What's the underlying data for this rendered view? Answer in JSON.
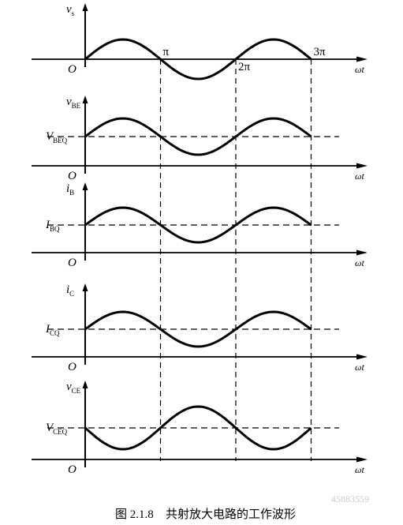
{
  "panels": [
    {
      "label": {
        "symbol": "v",
        "subscript": "s"
      },
      "origin": "O",
      "axis_label": "ωt",
      "ticks": [
        "π",
        "2π",
        "3π"
      ]
    },
    {
      "label": {
        "symbol": "v",
        "subscript": "BE"
      },
      "dc_label": {
        "symbol": "V",
        "subscript": "BEQ"
      },
      "origin": "O",
      "axis_label": "ωt"
    },
    {
      "label": {
        "symbol": "i",
        "subscript": "B"
      },
      "dc_label": {
        "symbol": "I",
        "subscript": "BQ"
      },
      "origin": "O",
      "axis_label": "ωt"
    },
    {
      "label": {
        "symbol": "i",
        "subscript": "C"
      },
      "dc_label": {
        "symbol": "I",
        "subscript": "CQ"
      },
      "origin": "O",
      "axis_label": "ωt"
    },
    {
      "label": {
        "symbol": "v",
        "subscript": "CE"
      },
      "dc_label": {
        "symbol": "V",
        "subscript": "CEQ"
      },
      "origin": "O",
      "axis_label": "ωt"
    }
  ],
  "caption": {
    "number": "图 2.1.8",
    "text": "共射放大电路的工作波形"
  },
  "watermark": "45883559"
}
